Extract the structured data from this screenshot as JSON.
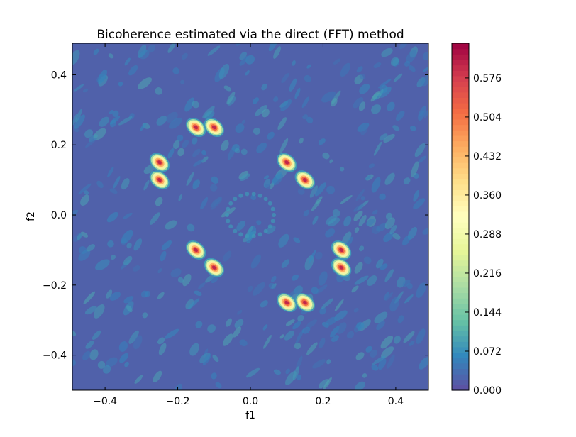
{
  "chart_data": {
    "type": "heatmap",
    "title": "Bicoherence estimated via the direct (FFT) method",
    "xlabel": "f1",
    "ylabel": "f2",
    "xlim": [
      -0.49,
      0.49
    ],
    "ylim": [
      -0.5,
      0.49
    ],
    "xticks": [
      -0.4,
      -0.2,
      0.0,
      0.2,
      0.4
    ],
    "xtick_labels": [
      "−0.4",
      "−0.2",
      "0.0",
      "0.2",
      "0.4"
    ],
    "yticks": [
      -0.4,
      -0.2,
      0.0,
      0.2,
      0.4
    ],
    "ytick_labels": [
      "−0.4",
      "−0.2",
      "0.0",
      "0.2",
      "0.4"
    ],
    "colormap": "Spectral_r",
    "colormap_colors": [
      "#5e4fa2",
      "#3288bd",
      "#66c2a5",
      "#abdda4",
      "#e6f598",
      "#ffffbf",
      "#fee08b",
      "#fdae61",
      "#f46d43",
      "#d53e4f",
      "#9e0142"
    ],
    "colorbar": {
      "range": [
        0.0,
        0.64
      ],
      "ticks": [
        0.0,
        0.072,
        0.144,
        0.216,
        0.288,
        0.36,
        0.432,
        0.504,
        0.576
      ],
      "tick_labels": [
        "0.000",
        "0.072",
        "0.144",
        "0.216",
        "0.288",
        "0.360",
        "0.432",
        "0.504",
        "0.576"
      ]
    },
    "background_level": 0.02,
    "peaks": [
      {
        "f1": -0.15,
        "f2": 0.25,
        "value": 0.64
      },
      {
        "f1": -0.1,
        "f2": 0.25,
        "value": 0.64
      },
      {
        "f1": -0.25,
        "f2": 0.15,
        "value": 0.64
      },
      {
        "f1": -0.25,
        "f2": 0.1,
        "value": 0.64
      },
      {
        "f1": 0.1,
        "f2": 0.15,
        "value": 0.64
      },
      {
        "f1": 0.15,
        "f2": 0.1,
        "value": 0.64
      },
      {
        "f1": -0.15,
        "f2": -0.1,
        "value": 0.64
      },
      {
        "f1": -0.1,
        "f2": -0.15,
        "value": 0.64
      },
      {
        "f1": 0.25,
        "f2": -0.1,
        "value": 0.64
      },
      {
        "f1": 0.25,
        "f2": -0.15,
        "value": 0.64
      },
      {
        "f1": 0.1,
        "f2": -0.25,
        "value": 0.64
      },
      {
        "f1": 0.15,
        "f2": -0.25,
        "value": 0.64
      }
    ],
    "grid": false
  }
}
